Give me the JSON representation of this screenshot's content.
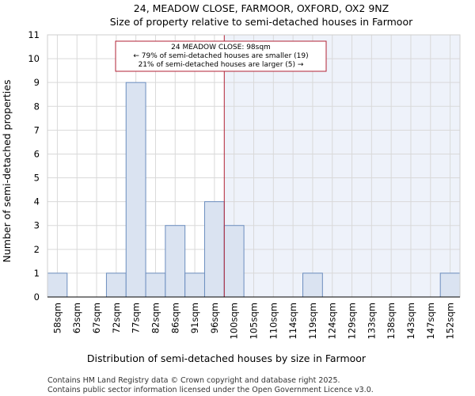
{
  "chart_data": {
    "type": "bar",
    "title_line1": "24, MEADOW CLOSE, FARMOOR, OXFORD, OX2 9NZ",
    "title_line2": "Size of property relative to semi-detached houses in Farmoor",
    "xlabel": "Distribution of semi-detached houses by size in Farmoor",
    "ylabel": "Number of semi-detached properties",
    "categories": [
      "58sqm",
      "63sqm",
      "67sqm",
      "72sqm",
      "77sqm",
      "82sqm",
      "86sqm",
      "91sqm",
      "96sqm",
      "100sqm",
      "105sqm",
      "110sqm",
      "114sqm",
      "119sqm",
      "124sqm",
      "129sqm",
      "133sqm",
      "138sqm",
      "143sqm",
      "147sqm",
      "152sqm"
    ],
    "values": [
      1,
      0,
      0,
      1,
      9,
      1,
      3,
      1,
      4,
      3,
      0,
      0,
      0,
      1,
      0,
      0,
      0,
      0,
      0,
      0,
      1
    ],
    "ylim": [
      0,
      11
    ],
    "yticks": [
      0,
      1,
      2,
      3,
      4,
      5,
      6,
      7,
      8,
      9,
      10,
      11
    ],
    "grid": true,
    "marker": {
      "value_sqm": 98,
      "line1": "24 MEADOW CLOSE: 98sqm",
      "line2": "← 79% of semi-detached houses are smaller (19)",
      "line3": "21% of semi-detached houses are larger (5) →"
    },
    "colors": {
      "bar_fill": "#dae3f1",
      "bar_stroke": "#6c8ebf",
      "marker_line": "#b22234",
      "shade": "#eef2fa",
      "grid": "#d9d9d9"
    }
  },
  "footer": {
    "line1": "Contains HM Land Registry data © Crown copyright and database right 2025.",
    "line2": "Contains public sector information licensed under the Open Government Licence v3.0."
  }
}
